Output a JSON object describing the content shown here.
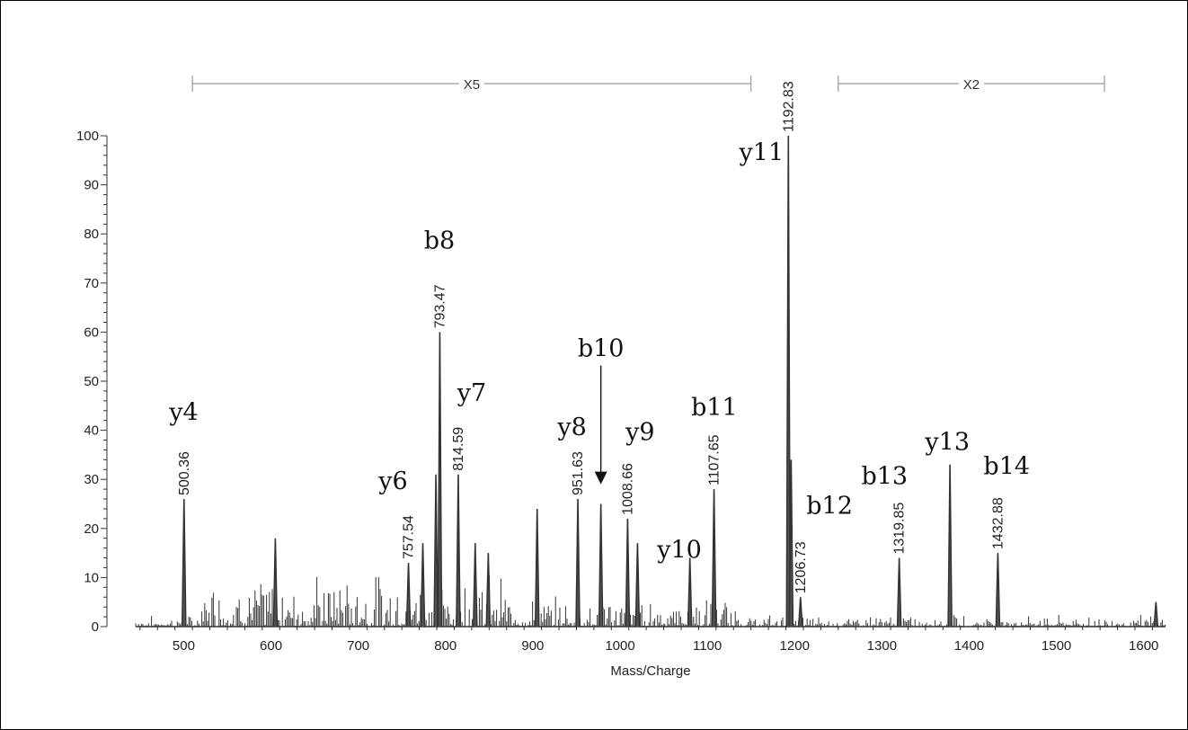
{
  "chart_data": {
    "type": "line",
    "title": "",
    "xlabel": "Mass/Charge",
    "ylabel": "",
    "xlim": [
      445,
      1625
    ],
    "ylim": [
      0,
      100
    ],
    "x_ticks": [
      500,
      600,
      700,
      800,
      900,
      1000,
      1100,
      1200,
      1300,
      1400,
      1500,
      1600
    ],
    "y_ticks": [
      0,
      10,
      20,
      30,
      40,
      50,
      60,
      70,
      80,
      90,
      100
    ],
    "grid": false,
    "peaks": [
      {
        "mz": 500.36,
        "intensity": 26,
        "label": "500.36"
      },
      {
        "mz": 605,
        "intensity": 18
      },
      {
        "mz": 757.54,
        "intensity": 13,
        "label": "757.54"
      },
      {
        "mz": 774,
        "intensity": 17
      },
      {
        "mz": 789,
        "intensity": 31
      },
      {
        "mz": 793.47,
        "intensity": 60,
        "label": "793.47"
      },
      {
        "mz": 814.59,
        "intensity": 31,
        "label": "814.59"
      },
      {
        "mz": 834,
        "intensity": 17
      },
      {
        "mz": 849,
        "intensity": 15
      },
      {
        "mz": 905,
        "intensity": 24
      },
      {
        "mz": 951.63,
        "intensity": 26,
        "label": "951.63"
      },
      {
        "mz": 978,
        "intensity": 25
      },
      {
        "mz": 1008.66,
        "intensity": 22,
        "label": "1008.66"
      },
      {
        "mz": 1020,
        "intensity": 17
      },
      {
        "mz": 1080,
        "intensity": 14
      },
      {
        "mz": 1107.65,
        "intensity": 28,
        "label": "1107.65"
      },
      {
        "mz": 1192.83,
        "intensity": 100,
        "label": "1192.83"
      },
      {
        "mz": 1196,
        "intensity": 34
      },
      {
        "mz": 1206.73,
        "intensity": 6,
        "label": "1206.73"
      },
      {
        "mz": 1319.85,
        "intensity": 14,
        "label": "1319.85"
      },
      {
        "mz": 1378,
        "intensity": 33
      },
      {
        "mz": 1432.88,
        "intensity": 15,
        "label": "1432.88"
      },
      {
        "mz": 1614,
        "intensity": 5
      }
    ],
    "annotations": [
      {
        "text": "y4",
        "mz": 500,
        "intensity": 42
      },
      {
        "text": "y6",
        "mz": 740,
        "intensity": 28
      },
      {
        "text": "b8",
        "mz": 793,
        "intensity": 77
      },
      {
        "text": "y7",
        "mz": 830,
        "intensity": 46
      },
      {
        "text": "y8",
        "mz": 945,
        "intensity": 39
      },
      {
        "text": "b10",
        "mz": 978,
        "intensity": 55,
        "arrow_to": 29
      },
      {
        "text": "y9",
        "mz": 1023,
        "intensity": 38
      },
      {
        "text": "y10",
        "mz": 1068,
        "intensity": 14
      },
      {
        "text": "b11",
        "mz": 1108,
        "intensity": 43
      },
      {
        "text": "y11",
        "mz": 1162,
        "intensity": 95
      },
      {
        "text": "b12",
        "mz": 1240,
        "intensity": 23
      },
      {
        "text": "b13",
        "mz": 1303,
        "intensity": 29
      },
      {
        "text": "y13",
        "mz": 1375,
        "intensity": 36
      },
      {
        "text": "b14",
        "mz": 1443,
        "intensity": 31
      }
    ],
    "ranges": [
      {
        "label": "X5",
        "from": 510,
        "to": 1150
      },
      {
        "label": "X2",
        "from": 1250,
        "to": 1555
      }
    ]
  }
}
